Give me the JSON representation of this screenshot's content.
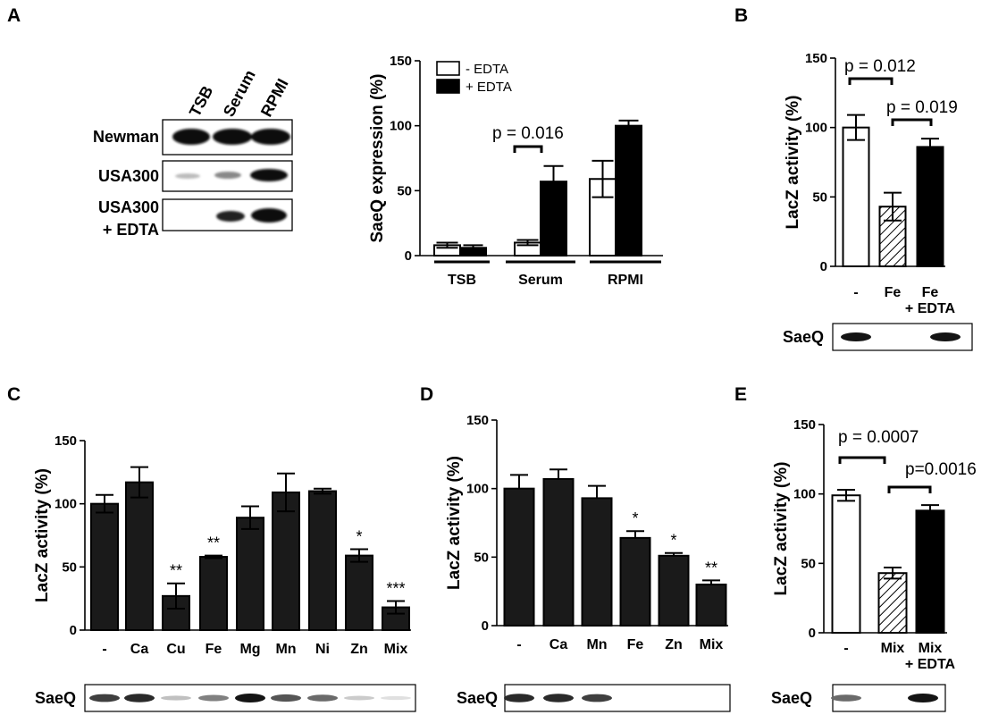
{
  "panel_labels": {
    "A": "A",
    "B": "B",
    "C": "C",
    "D": "D",
    "E": "E"
  },
  "blot_a": {
    "lanes": [
      "TSB",
      "Serum",
      "RPMI"
    ],
    "rows": [
      "Newman",
      "USA300",
      "USA300\n+ EDTA"
    ],
    "row_line1": [
      "Newman",
      "USA300",
      "USA300"
    ],
    "row_line2": [
      "",
      "",
      "+ EDTA"
    ]
  },
  "saeq_label": "SaeQ",
  "chart_data": [
    {
      "id": "A",
      "type": "bar",
      "categories": [
        "TSB",
        "Serum",
        "RPMI"
      ],
      "series": [
        {
          "name": "-  EDTA",
          "values": [
            8,
            10,
            59
          ],
          "errors": [
            2,
            2,
            14
          ],
          "fill": "#ffffff"
        },
        {
          "name": "+ EDTA",
          "values": [
            6,
            57,
            100
          ],
          "errors": [
            2,
            12,
            4
          ],
          "fill": "#000000"
        }
      ],
      "ylabel": "SaeQ expression (%)",
      "ylim": [
        0,
        150
      ],
      "yticks": [
        0,
        50,
        100,
        150
      ],
      "legend_position": "top-left",
      "annotations": [
        {
          "text": "p = 0.016",
          "between": [
            "Serum -EDTA",
            "Serum +EDTA"
          ]
        }
      ]
    },
    {
      "id": "B",
      "type": "bar",
      "categories": [
        "-",
        "Fe",
        "Fe\n+ EDTA"
      ],
      "values": [
        100,
        43,
        86
      ],
      "errors": [
        9,
        10,
        6
      ],
      "fills": [
        "white",
        "hatched",
        "black"
      ],
      "ylabel": "LacZ activity (%)",
      "ylim": [
        0,
        150
      ],
      "yticks": [
        0,
        50,
        100,
        150
      ],
      "annotations": [
        {
          "text": "p = 0.012",
          "between": [
            "-",
            "Fe"
          ]
        },
        {
          "text": "p = 0.019",
          "between": [
            "Fe",
            "Fe + EDTA"
          ]
        }
      ],
      "blot_bands": [
        1,
        0,
        1
      ]
    },
    {
      "id": "C",
      "type": "bar",
      "categories": [
        "-",
        "Ca",
        "Cu",
        "Fe",
        "Mg",
        "Mn",
        "Ni",
        "Zn",
        "Mix"
      ],
      "values": [
        100,
        117,
        27,
        58,
        89,
        109,
        110,
        59,
        18
      ],
      "errors": [
        7,
        12,
        10,
        1,
        9,
        15,
        2,
        5,
        5
      ],
      "significance": [
        "",
        "",
        "**",
        "**",
        "",
        "",
        "",
        "*",
        "***"
      ],
      "ylabel": "LacZ activity (%)",
      "ylim": [
        0,
        150
      ],
      "yticks": [
        0,
        50,
        100,
        150
      ],
      "blot_bands": [
        0.8,
        0.9,
        0.2,
        0.5,
        1,
        0.7,
        0.6,
        0.15,
        0.05
      ]
    },
    {
      "id": "D",
      "type": "bar",
      "categories": [
        "-",
        "Ca",
        "Mn",
        "Fe",
        "Zn",
        "Mix"
      ],
      "values": [
        100,
        107,
        93,
        64,
        51,
        30
      ],
      "errors": [
        10,
        7,
        9,
        5,
        2,
        3
      ],
      "significance": [
        "",
        "",
        "",
        "*",
        "*",
        "**"
      ],
      "ylabel": "LacZ activity (%)",
      "ylim": [
        0,
        150
      ],
      "yticks": [
        0,
        50,
        100,
        150
      ],
      "blot_bands": [
        0.9,
        0.9,
        0.8,
        0,
        0,
        0
      ]
    },
    {
      "id": "E",
      "type": "bar",
      "categories": [
        "-",
        "Mix",
        "Mix\n+ EDTA"
      ],
      "values": [
        99,
        43,
        88
      ],
      "errors": [
        4,
        4,
        4
      ],
      "fills": [
        "white",
        "hatched",
        "black"
      ],
      "ylabel": "LacZ activity (%)",
      "ylim": [
        0,
        150
      ],
      "yticks": [
        0,
        50,
        100,
        150
      ],
      "annotations": [
        {
          "text": "p = 0.0007",
          "between": [
            "-",
            "Mix"
          ]
        },
        {
          "text": "p=0.0016",
          "between": [
            "Mix",
            "Mix + EDTA"
          ]
        }
      ],
      "blot_bands": [
        0.6,
        0,
        1
      ]
    }
  ]
}
